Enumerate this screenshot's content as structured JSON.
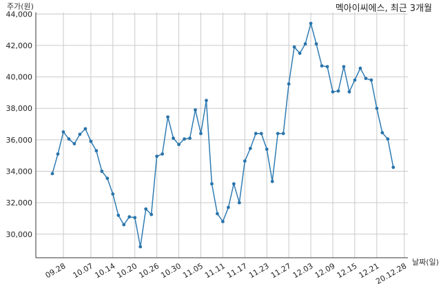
{
  "chart_data": {
    "type": "line",
    "title": "멕아이씨에스, 최근 3개월",
    "xlabel": "날짜(일)",
    "ylabel": "주가(원)",
    "ylim": [
      28500,
      44100
    ],
    "yticks": [
      30000,
      32000,
      34000,
      36000,
      38000,
      40000,
      42000,
      44000
    ],
    "ytick_labels": [
      "30,000",
      "32,000",
      "34,000",
      "36,000",
      "38,000",
      "40,000",
      "42,000",
      "44,000"
    ],
    "xticks": [
      {
        "index": 2,
        "label": "09.28"
      },
      {
        "index": 7,
        "label": "10.07"
      },
      {
        "index": 11,
        "label": "10.14"
      },
      {
        "index": 15,
        "label": "10.20"
      },
      {
        "index": 19,
        "label": "10.26"
      },
      {
        "index": 23,
        "label": "10.30"
      },
      {
        "index": 27,
        "label": "11.05"
      },
      {
        "index": 31,
        "label": "11.11"
      },
      {
        "index": 35,
        "label": "11.17"
      },
      {
        "index": 39,
        "label": "11.23"
      },
      {
        "index": 43,
        "label": "11.27"
      },
      {
        "index": 47,
        "label": "12.03"
      },
      {
        "index": 51,
        "label": "12.09"
      },
      {
        "index": 55,
        "label": "12.15"
      },
      {
        "index": 59,
        "label": "12.21"
      },
      {
        "index": 64,
        "label": "20.12.28"
      }
    ],
    "grid": true,
    "color": "#2e7bb3",
    "values": [
      33850,
      35100,
      36500,
      36050,
      35750,
      36350,
      36700,
      35900,
      35300,
      34000,
      33550,
      32550,
      31200,
      30600,
      31100,
      31050,
      29200,
      31600,
      31250,
      34950,
      35100,
      37450,
      36100,
      35700,
      36050,
      36100,
      37900,
      36400,
      38500,
      33200,
      31300,
      30800,
      31700,
      33200,
      32000,
      34650,
      35450,
      36400,
      36400,
      35400,
      33350,
      36400,
      36400,
      39550,
      41900,
      41500,
      42100,
      43400,
      42100,
      40700,
      40650,
      39050,
      39100,
      40650,
      39050,
      39800,
      40550,
      39900,
      39800,
      38000,
      36450,
      36050,
      34250
    ]
  }
}
